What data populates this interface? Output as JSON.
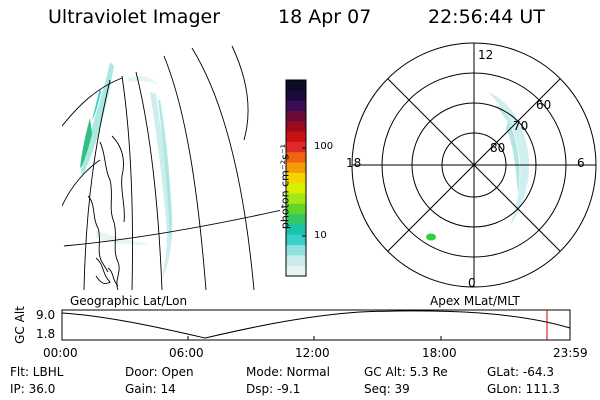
{
  "header": {
    "instrument": "Ultraviolet Imager",
    "date": "18 Apr 07",
    "time": "22:56:44 UT"
  },
  "colorbar": {
    "unit_label": "photon cm⁻²s⁻¹",
    "ticks": [
      "100",
      "10"
    ],
    "colors": [
      "#0b0b26",
      "#1a0b3d",
      "#3b0b55",
      "#6a0a3a",
      "#9b0a1f",
      "#c81212",
      "#e02a2a",
      "#f06410",
      "#f59a08",
      "#f7d400",
      "#d8f000",
      "#a4e61a",
      "#62d628",
      "#32c868",
      "#18c4aa",
      "#3ad0c8",
      "#8ee0dc",
      "#c8ecea",
      "#e6f4f4"
    ]
  },
  "left_panel": {
    "label": "Geographic Lat/Lon"
  },
  "right_panel": {
    "label": "Apex  MLat/MLT",
    "mlt_labels": {
      "top": "12",
      "left": "18",
      "right": "6",
      "bottom": "0"
    },
    "lat_labels": [
      "60",
      "70",
      "80"
    ]
  },
  "altitude_plot": {
    "axis_title": "GC Alt",
    "y_ticks": [
      "9.0",
      "1.8"
    ],
    "x_ticks": [
      "00:00",
      "06:00",
      "12:00",
      "18:00",
      "23:59"
    ],
    "current_time_marker": "22:56:44",
    "marker_color": "#cc0000"
  },
  "status": {
    "flt": "Flt: LBHL",
    "ip": "IP: 36.0",
    "door": "Door: Open",
    "gain": "Gain: 14",
    "mode": "Mode: Normal",
    "dsp": "Dsp:    -9.1",
    "gc_alt": "GC Alt: 5.3 Re",
    "seq": "Seq: 39",
    "glat": "GLat: -64.3",
    "glon": "GLon: 111.3"
  }
}
